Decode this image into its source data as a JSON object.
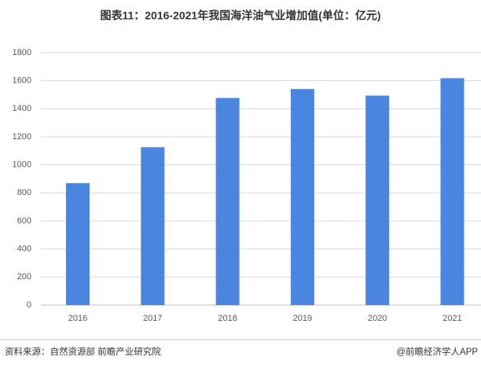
{
  "chart_data": {
    "type": "bar",
    "title": "图表11：2016-2021年我国海洋油气业增加值(单位：亿元)",
    "categories": [
      "2016",
      "2017",
      "2018",
      "2019",
      "2020",
      "2021"
    ],
    "values": [
      870,
      1126,
      1477,
      1541,
      1494,
      1618
    ],
    "color": "#4a86e0",
    "ylim": [
      0,
      1800
    ],
    "yticks": [
      0,
      200,
      400,
      600,
      800,
      1000,
      1200,
      1400,
      1600,
      1800
    ],
    "grid": true,
    "source": "资料来源：自然资源部 前瞻产业研究院",
    "credit": "@前瞻经济学人APP"
  }
}
